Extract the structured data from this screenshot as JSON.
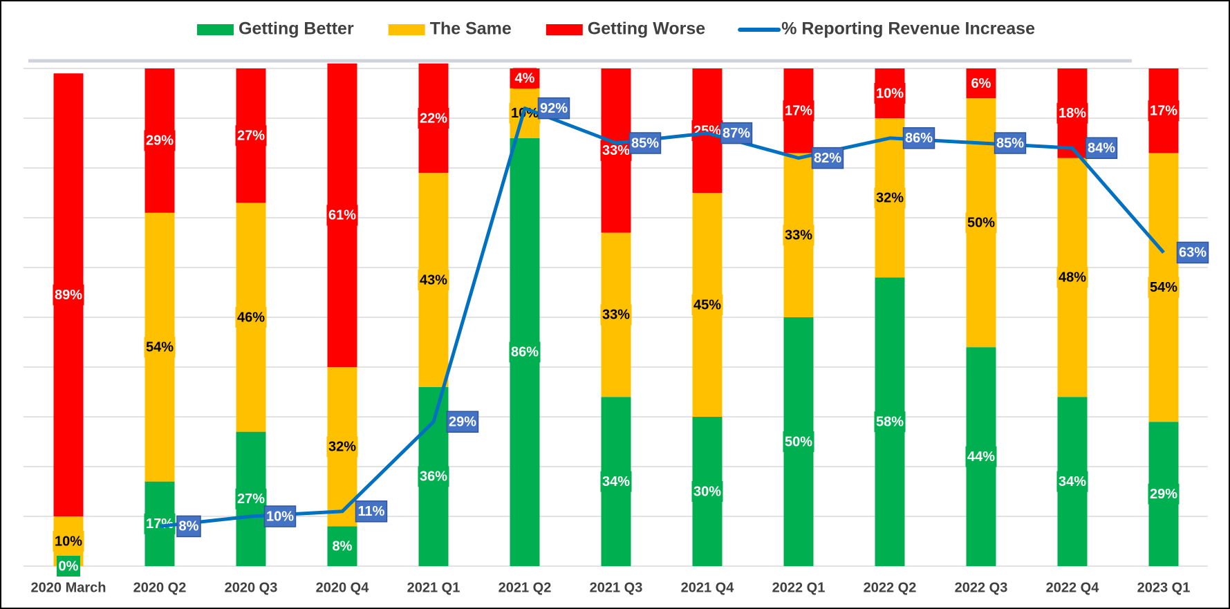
{
  "chart_data": {
    "type": "stacked_bar_line",
    "categories": [
      "2020 March",
      "2020 Q2",
      "2020 Q3",
      "2020 Q4",
      "2021 Q1",
      "2021 Q2",
      "2021 Q3",
      "2021 Q4",
      "2022 Q1",
      "2022 Q2",
      "2022 Q3",
      "2022 Q4",
      "2023 Q1"
    ],
    "series": [
      {
        "name": "Getting Better",
        "color": "#00b050",
        "text_color": "#ffffff",
        "values": [
          0,
          17,
          27,
          8,
          36,
          86,
          34,
          30,
          50,
          58,
          44,
          34,
          29
        ],
        "value_labels": [
          "0%",
          "17%",
          "27%",
          "8%",
          "36%",
          "86%",
          "34%",
          "30%",
          "50%",
          "58%",
          "44%",
          "34%",
          "29%"
        ]
      },
      {
        "name": "The Same",
        "color": "#ffc000",
        "text_color": "#000000",
        "values": [
          10,
          54,
          46,
          32,
          43,
          10,
          33,
          45,
          33,
          32,
          50,
          48,
          54
        ],
        "value_labels": [
          "10%",
          "54%",
          "46%",
          "32%",
          "43%",
          "10%",
          "33%",
          "45%",
          "33%",
          "32%",
          "50%",
          "48%",
          "54%"
        ]
      },
      {
        "name": "Getting Worse",
        "color": "#ff0000",
        "text_color": "#ffffff",
        "values": [
          89,
          29,
          27,
          61,
          22,
          4,
          33,
          25,
          17,
          10,
          6,
          18,
          17
        ],
        "value_labels": [
          "89%",
          "29%",
          "27%",
          "61%",
          "22%",
          "4%",
          "33%",
          "25%",
          "17%",
          "10%",
          "6%",
          "18%",
          "17%"
        ]
      },
      {
        "name": "% Reporting Revenue Increase",
        "color": "#0070c0",
        "kind": "line",
        "label_color": "#4472c4",
        "values": [
          null,
          8,
          10,
          11,
          29,
          92,
          85,
          87,
          82,
          86,
          85,
          84,
          63
        ],
        "value_labels": [
          null,
          "8%",
          "10%",
          "11%",
          "29%",
          "92%",
          "85%",
          "87%",
          "82%",
          "86%",
          "85%",
          "84%",
          "63%"
        ]
      }
    ],
    "ylim": [
      0,
      100
    ],
    "yticks": [
      0,
      10,
      20,
      30,
      40,
      50,
      60,
      70,
      80,
      90,
      100
    ],
    "grid": true,
    "legend": "top"
  }
}
